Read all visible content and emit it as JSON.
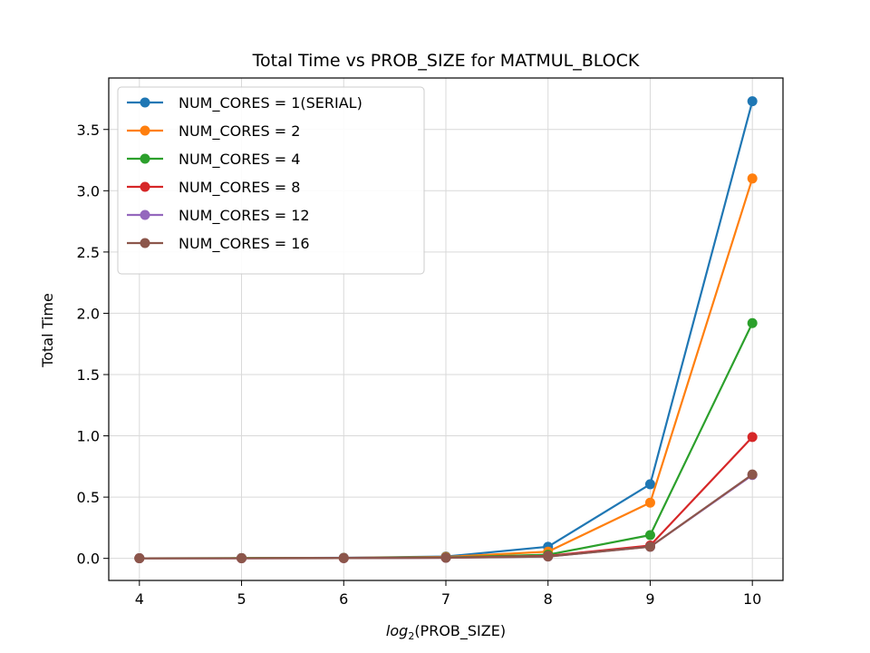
{
  "chart_data": {
    "type": "line",
    "title": "Total Time vs PROB_SIZE for MATMUL_BLOCK",
    "xlabel_prefix": "log",
    "xlabel_sub": "2",
    "xlabel_suffix": "(PROB_SIZE)",
    "ylabel": "Total Time",
    "x": [
      4,
      5,
      6,
      7,
      8,
      9,
      10
    ],
    "xlim": [
      3.7,
      10.3
    ],
    "ylim": [
      -0.18,
      3.92
    ],
    "xticks": [
      4,
      5,
      6,
      7,
      8,
      9,
      10
    ],
    "yticks": [
      0.0,
      0.5,
      1.0,
      1.5,
      2.0,
      2.5,
      3.0,
      3.5
    ],
    "ytick_labels": [
      "0.0",
      "0.5",
      "1.0",
      "1.5",
      "2.0",
      "2.5",
      "3.0",
      "3.5"
    ],
    "grid": true,
    "legend_position": "upper-left",
    "series": [
      {
        "name": "NUM_CORES = 1(SERIAL)",
        "color": "#1f77b4",
        "values": [
          0.001,
          0.002,
          0.005,
          0.015,
          0.095,
          0.605,
          3.73
        ]
      },
      {
        "name": "NUM_CORES = 2",
        "color": "#ff7f0e",
        "values": [
          0.001,
          0.002,
          0.004,
          0.012,
          0.055,
          0.455,
          3.1
        ]
      },
      {
        "name": "NUM_CORES = 4",
        "color": "#2ca02c",
        "values": [
          0.001,
          0.002,
          0.003,
          0.008,
          0.03,
          0.19,
          1.92
        ]
      },
      {
        "name": "NUM_CORES = 8",
        "color": "#d62728",
        "values": [
          0.001,
          0.001,
          0.002,
          0.006,
          0.02,
          0.105,
          0.99
        ]
      },
      {
        "name": "NUM_CORES = 12",
        "color": "#9467bd",
        "values": [
          0.001,
          0.001,
          0.002,
          0.005,
          0.015,
          0.095,
          0.68
        ]
      },
      {
        "name": "NUM_CORES = 16",
        "color": "#8c564b",
        "values": [
          0.001,
          0.001,
          0.002,
          0.005,
          0.015,
          0.095,
          0.685
        ]
      }
    ]
  }
}
